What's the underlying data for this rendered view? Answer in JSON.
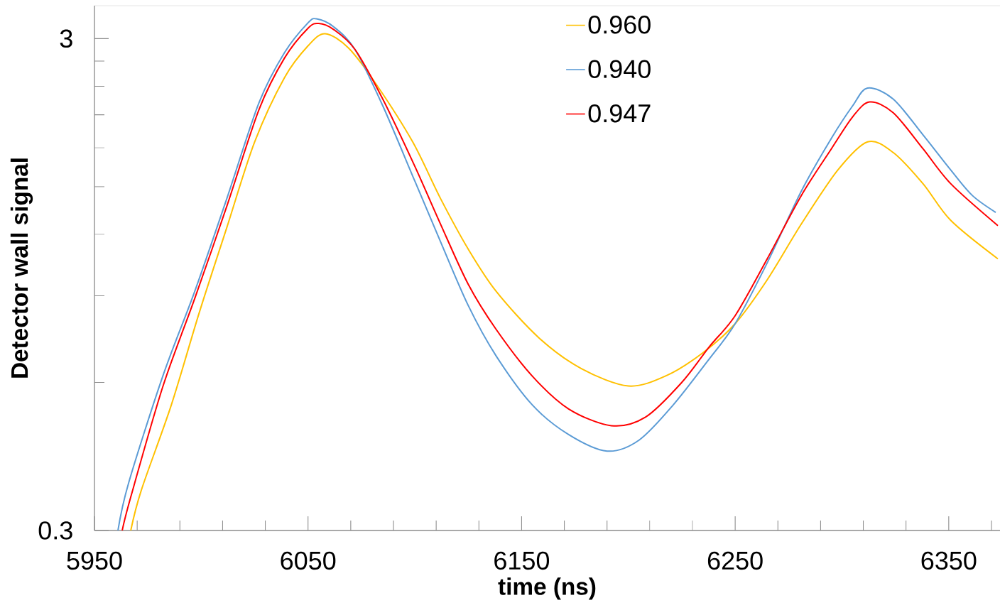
{
  "chart_data": {
    "type": "line",
    "xlabel": "time (ns)",
    "ylabel": "Detector wall signal",
    "log": "y",
    "xlim": [
      5950,
      6374
    ],
    "ylim": [
      0.3,
      3.5
    ],
    "xticks": [
      5950,
      {
        "value": 5970,
        "label": null
      },
      {
        "value": 5990,
        "label": null
      },
      {
        "value": 6010,
        "label": null
      },
      {
        "value": 6030,
        "label": null
      },
      6050,
      {
        "value": 6070,
        "label": null
      },
      {
        "value": 6090,
        "label": null
      },
      {
        "value": 6110,
        "label": null
      },
      {
        "value": 6130,
        "label": null
      },
      6150,
      {
        "value": 6170,
        "label": null
      },
      {
        "value": 6190,
        "label": null
      },
      {
        "value": 6210,
        "label": null
      },
      {
        "value": 6230,
        "label": null
      },
      6250,
      {
        "value": 6270,
        "label": null
      },
      {
        "value": 6290,
        "label": null
      },
      {
        "value": 6310,
        "label": null
      },
      {
        "value": 6330,
        "label": null
      },
      6350,
      {
        "value": 6370,
        "label": null
      }
    ],
    "yticks": [
      0.3,
      {
        "value": 0.6,
        "label": null
      },
      {
        "value": 0.9,
        "label": null
      },
      {
        "value": 1.2,
        "label": null
      },
      {
        "value": 1.5,
        "label": null
      },
      {
        "value": 1.8,
        "label": null
      },
      {
        "value": 2.1,
        "label": null
      },
      {
        "value": 2.4,
        "label": null
      },
      {
        "value": 2.7,
        "label": null
      },
      3
    ],
    "grid": false,
    "legend": "top",
    "series": [
      {
        "name": "0.960",
        "color": "#ffc000",
        "x": [
          5967,
          5972,
          5986,
          5999,
          6012,
          6025,
          6039,
          6050,
          6058,
          6069,
          6082,
          6099,
          6112,
          6125,
          6138,
          6158,
          6178,
          6200,
          6218,
          6235,
          6250,
          6265,
          6281,
          6298,
          6312,
          6324,
          6338,
          6351,
          6373
        ],
        "values": [
          0.3,
          0.363,
          0.54,
          0.83,
          1.24,
          1.85,
          2.5,
          2.9,
          3.07,
          2.87,
          2.42,
          1.85,
          1.42,
          1.12,
          0.92,
          0.74,
          0.64,
          0.59,
          0.62,
          0.69,
          0.79,
          0.97,
          1.26,
          1.62,
          1.85,
          1.76,
          1.52,
          1.28,
          1.07
        ]
      },
      {
        "name": "0.940",
        "color": "#5b9bd5",
        "x": [
          5961,
          5966,
          5982,
          5997,
          6012,
          6027,
          6039,
          6050,
          6054,
          6062,
          6072,
          6085,
          6100,
          6112,
          6125,
          6138,
          6155,
          6172,
          6190,
          6205,
          6221,
          6238,
          6250,
          6265,
          6281,
          6295,
          6305,
          6312,
          6324,
          6338,
          6351,
          6361,
          6372
        ],
        "values": [
          0.3,
          0.375,
          0.618,
          0.92,
          1.42,
          2.22,
          2.81,
          3.23,
          3.29,
          3.17,
          2.85,
          2.19,
          1.54,
          1.16,
          0.86,
          0.68,
          0.54,
          0.47,
          0.435,
          0.458,
          0.54,
          0.671,
          0.79,
          1.05,
          1.47,
          1.88,
          2.19,
          2.38,
          2.26,
          1.91,
          1.62,
          1.44,
          1.33
        ]
      },
      {
        "name": "0.947",
        "color": "#ff0000",
        "x": [
          5963,
          5967,
          5982,
          5997,
          6012,
          6027,
          6039,
          6050,
          6055,
          6062,
          6072,
          6085,
          6100,
          6112,
          6125,
          6138,
          6155,
          6172,
          6192,
          6208,
          6225,
          6238,
          6250,
          6265,
          6281,
          6295,
          6305,
          6313,
          6324,
          6338,
          6351,
          6373
        ],
        "values": [
          0.3,
          0.351,
          0.588,
          0.89,
          1.37,
          2.15,
          2.74,
          3.15,
          3.22,
          3.13,
          2.85,
          2.26,
          1.65,
          1.26,
          0.95,
          0.77,
          0.618,
          0.53,
          0.49,
          0.51,
          0.6,
          0.71,
          0.82,
          1.07,
          1.44,
          1.79,
          2.08,
          2.23,
          2.12,
          1.79,
          1.52,
          1.25
        ]
      }
    ]
  }
}
